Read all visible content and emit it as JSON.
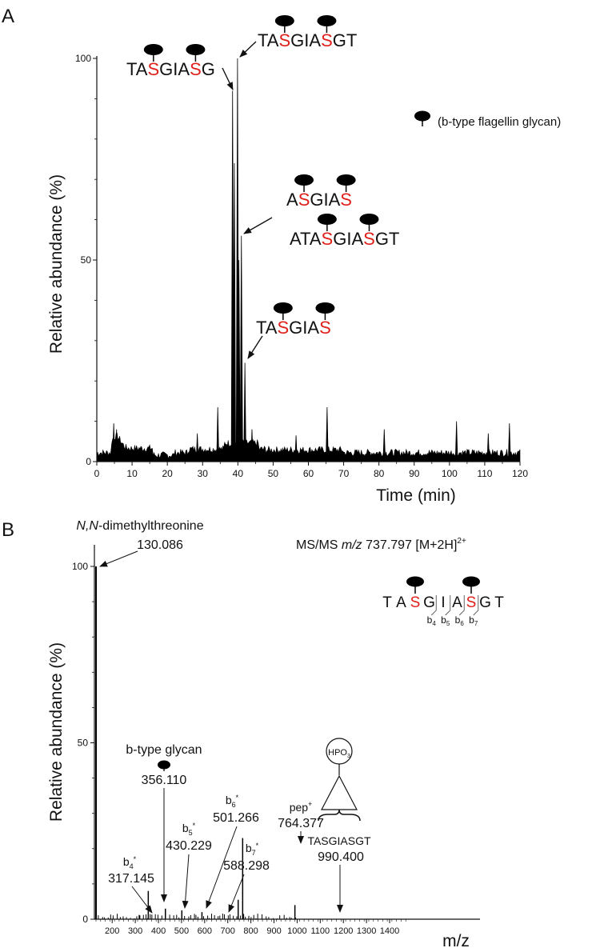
{
  "colors": {
    "modified_residue": "#e0201b",
    "trace": "#000000",
    "glycan": "#000000"
  },
  "chart_data": [
    {
      "panel": "A",
      "type": "line",
      "xlabel": "Time (min)",
      "ylabel": "Relative abundance (%)",
      "xlim": [
        0,
        120
      ],
      "ylim": [
        0,
        100
      ],
      "xticks": [
        0,
        10,
        20,
        30,
        40,
        50,
        60,
        70,
        80,
        90,
        100,
        110,
        120
      ],
      "yticks": [
        0,
        50,
        100
      ],
      "legend": {
        "label": "(b-type flagellin glycan)",
        "icon": "glycan-icon"
      },
      "peaks": [
        {
          "x": 4.8,
          "y": 9.5
        },
        {
          "x": 5.6,
          "y": 8
        },
        {
          "x": 28.5,
          "y": 7
        },
        {
          "x": 34.3,
          "y": 13.5
        },
        {
          "x": 38.5,
          "y": 92
        },
        {
          "x": 39.0,
          "y": 74
        },
        {
          "x": 39.9,
          "y": 100
        },
        {
          "x": 40.3,
          "y": 50
        },
        {
          "x": 41.0,
          "y": 56
        },
        {
          "x": 42.0,
          "y": 24.5
        },
        {
          "x": 44.0,
          "y": 8
        },
        {
          "x": 56.5,
          "y": 6.5
        },
        {
          "x": 65.3,
          "y": 13.5
        },
        {
          "x": 81.5,
          "y": 8
        },
        {
          "x": 102.0,
          "y": 10
        },
        {
          "x": 111.0,
          "y": 7
        },
        {
          "x": 117.0,
          "y": 9.5
        }
      ],
      "annotations": [
        {
          "segments": [
            "TA",
            "S",
            "GIA",
            "S",
            "G"
          ],
          "target": {
            "x": 38.5,
            "y": 92
          }
        },
        {
          "segments": [
            "TA",
            "S",
            "GIA",
            "S",
            "GT"
          ],
          "target": {
            "x": 39.9,
            "y": 100
          }
        },
        {
          "segments": [
            "A",
            "S",
            "GIA",
            "S"
          ],
          "target": null
        },
        {
          "segments": [
            "ATA",
            "S",
            "GIA",
            "S",
            "GT"
          ],
          "target": {
            "x": 41.0,
            "y": 56
          }
        },
        {
          "segments": [
            "TA",
            "S",
            "GIA",
            "S"
          ],
          "target": {
            "x": 42.0,
            "y": 24.5
          }
        }
      ]
    },
    {
      "panel": "B",
      "type": "bar",
      "title": "MS/MS m/z 737.797 [M+2H]2+",
      "title_parts": {
        "prefix": "MS/MS ",
        "italic": "m/z",
        "value": " 737.797 [M+2H]",
        "sup": "2+"
      },
      "xlabel": "m/z",
      "ylabel": "Relative abundance (%)",
      "xlim": [
        100,
        1500
      ],
      "ylim": [
        0,
        100
      ],
      "xticks": [
        200,
        300,
        400,
        500,
        600,
        700,
        800,
        900,
        1000,
        1100,
        1200,
        1300,
        1400
      ],
      "yticks": [
        0,
        50,
        100
      ],
      "peaks": [
        {
          "mz": 130.086,
          "y": 100
        },
        {
          "mz": 317.145,
          "y": 1.2
        },
        {
          "mz": 356.11,
          "y": 8
        },
        {
          "mz": 430.229,
          "y": 3
        },
        {
          "mz": 501.266,
          "y": 2.5
        },
        {
          "mz": 588.298,
          "y": 2
        },
        {
          "mz": 745.0,
          "y": 5.5
        },
        {
          "mz": 764.377,
          "y": 23
        },
        {
          "mz": 990.4,
          "y": 4
        }
      ],
      "labels": [
        {
          "id": "dmt",
          "name_italic": "N,N",
          "name_rest": "-dimethylthreonine",
          "mz": "130.086"
        },
        {
          "id": "glycan",
          "name": "b-type glycan",
          "mz": "356.110"
        },
        {
          "id": "b4",
          "ion": "b",
          "sub": "4",
          "sup": "*",
          "mz": "317.145"
        },
        {
          "id": "b5",
          "ion": "b",
          "sub": "5",
          "sup": "*",
          "mz": "430.229"
        },
        {
          "id": "b6",
          "ion": "b",
          "sub": "6",
          "sup": "*",
          "mz": "501.266"
        },
        {
          "id": "b7",
          "ion": "b",
          "sub": "7",
          "sup": "*",
          "mz": "588.298"
        },
        {
          "id": "pep",
          "ion": "pep",
          "sup": "+",
          "mz": "764.377"
        },
        {
          "id": "hpo3",
          "name": "TASGIASGT",
          "group": "HPO",
          "group_sub": "3",
          "mz": "990.400"
        }
      ],
      "sequence": {
        "letters": [
          "T",
          "A",
          "S",
          "G",
          "I",
          "A",
          "S",
          "G",
          "T"
        ],
        "glycosylated_positions": [
          2,
          6
        ],
        "fragments": [
          {
            "ion": "b",
            "sub": "4"
          },
          {
            "ion": "b",
            "sub": "5"
          },
          {
            "ion": "b",
            "sub": "6"
          },
          {
            "ion": "b",
            "sub": "7"
          }
        ]
      }
    }
  ]
}
